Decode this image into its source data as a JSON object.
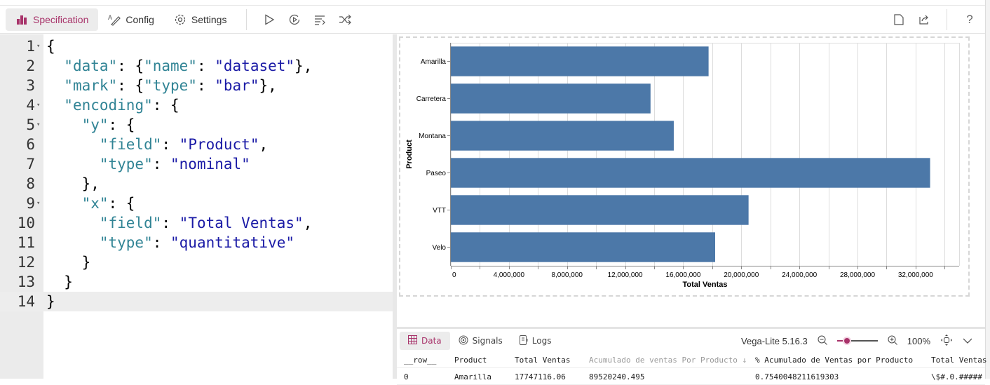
{
  "toolbar": {
    "tabs": [
      {
        "label": "Specification",
        "icon": "bar-chart-icon",
        "active": true
      },
      {
        "label": "Config",
        "icon": "pen-icon"
      },
      {
        "label": "Settings",
        "icon": "gear-icon"
      }
    ],
    "actions": [
      "play-icon",
      "replay-icon",
      "format-icon",
      "shuffle-icon"
    ],
    "right_actions": [
      "document-icon",
      "share-icon",
      "help-icon"
    ],
    "accent": "#a8336a"
  },
  "editor": {
    "current_line": 14,
    "lines": [
      {
        "n": "1",
        "fold": true,
        "indent": 0,
        "parts": [
          [
            "p",
            "{"
          ]
        ]
      },
      {
        "n": "2",
        "indent": 1,
        "parts": [
          [
            "k",
            "\"data\""
          ],
          [
            "p",
            ": {"
          ],
          [
            "k",
            "\"name\""
          ],
          [
            "p",
            ": "
          ],
          [
            "v",
            "\"dataset\""
          ],
          [
            "p",
            "},"
          ]
        ]
      },
      {
        "n": "3",
        "indent": 1,
        "parts": [
          [
            "k",
            "\"mark\""
          ],
          [
            "p",
            ": {"
          ],
          [
            "k",
            "\"type\""
          ],
          [
            "p",
            ": "
          ],
          [
            "v",
            "\"bar\""
          ],
          [
            "p",
            "},"
          ]
        ]
      },
      {
        "n": "4",
        "fold": true,
        "indent": 1,
        "parts": [
          [
            "k",
            "\"encoding\""
          ],
          [
            "p",
            ": {"
          ]
        ]
      },
      {
        "n": "5",
        "fold": true,
        "indent": 2,
        "parts": [
          [
            "k",
            "\"y\""
          ],
          [
            "p",
            ": {"
          ]
        ]
      },
      {
        "n": "6",
        "indent": 3,
        "parts": [
          [
            "k",
            "\"field\""
          ],
          [
            "p",
            ": "
          ],
          [
            "v",
            "\"Product\""
          ],
          [
            "p",
            ","
          ]
        ]
      },
      {
        "n": "7",
        "indent": 3,
        "parts": [
          [
            "k",
            "\"type\""
          ],
          [
            "p",
            ": "
          ],
          [
            "v",
            "\"nominal\""
          ]
        ]
      },
      {
        "n": "8",
        "indent": 2,
        "parts": [
          [
            "p",
            "},"
          ]
        ]
      },
      {
        "n": "9",
        "fold": true,
        "indent": 2,
        "parts": [
          [
            "k",
            "\"x\""
          ],
          [
            "p",
            ": {"
          ]
        ]
      },
      {
        "n": "10",
        "indent": 3,
        "parts": [
          [
            "k",
            "\"field\""
          ],
          [
            "p",
            ": "
          ],
          [
            "v",
            "\"Total Ventas\""
          ],
          [
            "p",
            ","
          ]
        ]
      },
      {
        "n": "11",
        "indent": 3,
        "parts": [
          [
            "k",
            "\"type\""
          ],
          [
            "p",
            ": "
          ],
          [
            "v",
            "\"quantitative\""
          ]
        ]
      },
      {
        "n": "12",
        "indent": 2,
        "parts": [
          [
            "p",
            "}"
          ]
        ]
      },
      {
        "n": "13",
        "indent": 1,
        "parts": [
          [
            "p",
            "}"
          ]
        ]
      },
      {
        "n": "14",
        "indent": 0,
        "parts": [
          [
            "p",
            "}"
          ]
        ]
      }
    ]
  },
  "chart_data": {
    "type": "bar",
    "orientation": "horizontal",
    "categories": [
      "Amarilla",
      "Carretera",
      "Montana",
      "Paseo",
      "VTT",
      "Velo"
    ],
    "values": [
      17747116.06,
      13750000,
      15350000,
      33000000,
      20500000,
      18200000
    ],
    "xlabel": "Total Ventas",
    "ylabel": "Product",
    "xlim": [
      0,
      35000000
    ],
    "xticks": [
      "0",
      "4,000,000",
      "8,000,000",
      "12,000,000",
      "16,000,000",
      "20,000,000",
      "24,000,000",
      "28,000,000",
      "32,000,000"
    ],
    "grid": true,
    "bar_color": "#4c78a8"
  },
  "panel": {
    "tabs": [
      {
        "label": "Data",
        "icon": "table-icon",
        "active": true
      },
      {
        "label": "Signals",
        "icon": "signal-icon"
      },
      {
        "label": "Logs",
        "icon": "logs-icon"
      }
    ],
    "version": "Vega-Lite 5.16.3",
    "zoom": "100%",
    "zoom_fraction": 0.25,
    "table": {
      "columns": [
        "__row__",
        "Product",
        "Total Ventas",
        "Acumulado de ventas Por Producto ↓",
        "% Acumulado de Ventas por Producto",
        "Total Ventas"
      ],
      "rows": [
        [
          "0",
          "Amarilla",
          "17747116.06",
          "89520240.495",
          "0.7540048211619303",
          "\\$#.0.#####"
        ]
      ]
    }
  }
}
